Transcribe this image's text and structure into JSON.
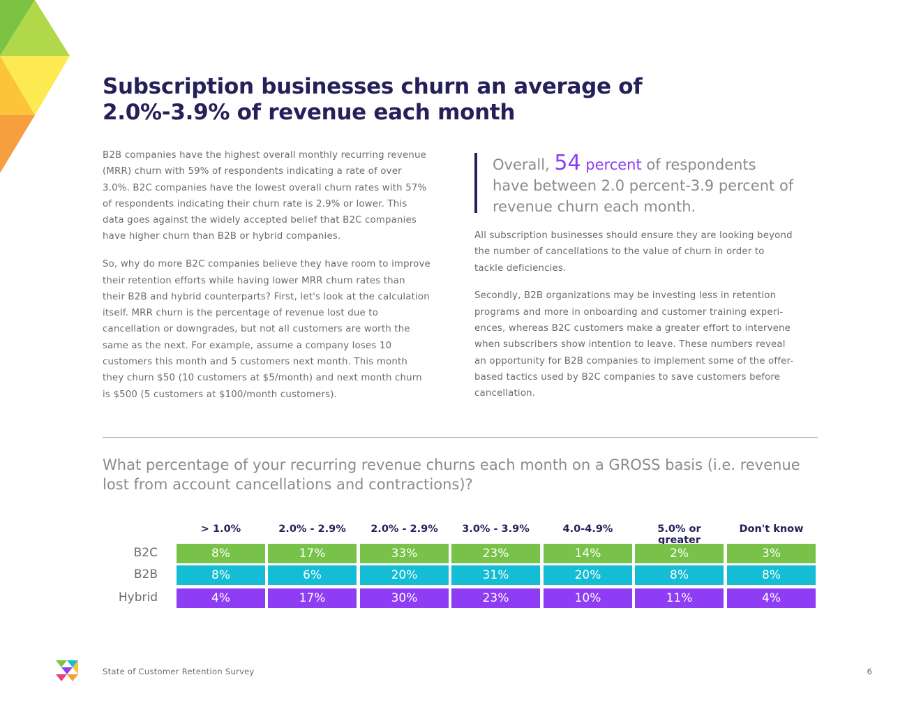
{
  "page": {
    "title": "Subscription businesses churn an average of 2.0%-3.9% of revenue each month",
    "left_paragraphs": [
      "B2B companies have the highest overall monthly recurring revenue (MRR) churn with 59% of respondents indicating a rate of over 3.0%. B2C companies have the lowest overall churn rates with 57% of respondents indicating their churn rate is 2.9% or lower. This data goes against the widely accepted belief that B2C companies have higher churn than B2B or hybrid companies.",
      "So, why do more B2C companies believe they have room to improve their retention efforts while having lower MRR churn rates than their B2B and hybrid counterparts? First, let's look at the calculation itself. MRR churn is the percentage of revenue lost due to cancellation or downgrades, but not all customers are worth the same as the next. For example, assume a company loses 10 customers this month and 5 customers next month. This month they churn $50 (10 customers at $5/month) and next month churn is $500 (5 customers at $100/month customers)."
    ],
    "quote": {
      "prefix": "Overall,",
      "number": "54",
      "percent_word": "percent",
      "suffix": "of respondents have between 2.0 percent-3.9 percent of revenue churn each month."
    },
    "right_paragraphs": [
      "All subscription businesses should ensure they are looking beyond the number of cancellations to the value of churn in order to tackle deficiencies.",
      "Secondly, B2B organizations may be investing less in retention programs and more in onboarding and customer training experi-ences, whereas B2C customers make a greater effort to intervene when subscribers show intention to leave. These numbers reveal an opportunity for B2B companies to implement some of the offer-based tactics used by B2C companies to save customers before cancellation."
    ],
    "question": "What percentage of your recurring revenue churns each month on a GROSS basis (i.e. revenue lost from account cancellations and contractions)?",
    "footer": "State of Customer Retention Survey",
    "page_number": "6"
  },
  "colors": {
    "title": "#25205a",
    "b2c": "#79c249",
    "b2b": "#14bcd4",
    "hybrid": "#8f3df5",
    "accent": "#8a3df2"
  },
  "chart_data": {
    "type": "table",
    "columns": [
      "> 1.0%",
      "2.0% - 2.9%",
      "2.0% - 2.9%",
      "3.0% - 3.9%",
      "4.0-4.9%",
      "5.0% or greater",
      "Don't know"
    ],
    "rows": [
      {
        "name": "B2C",
        "values": [
          "8%",
          "17%",
          "33%",
          "23%",
          "14%",
          "2%",
          "3%"
        ]
      },
      {
        "name": "B2B",
        "values": [
          "8%",
          "6%",
          "20%",
          "31%",
          "20%",
          "8%",
          "8%"
        ]
      },
      {
        "name": "Hybrid",
        "values": [
          "4%",
          "17%",
          "30%",
          "23%",
          "10%",
          "11%",
          "4%"
        ]
      }
    ]
  }
}
